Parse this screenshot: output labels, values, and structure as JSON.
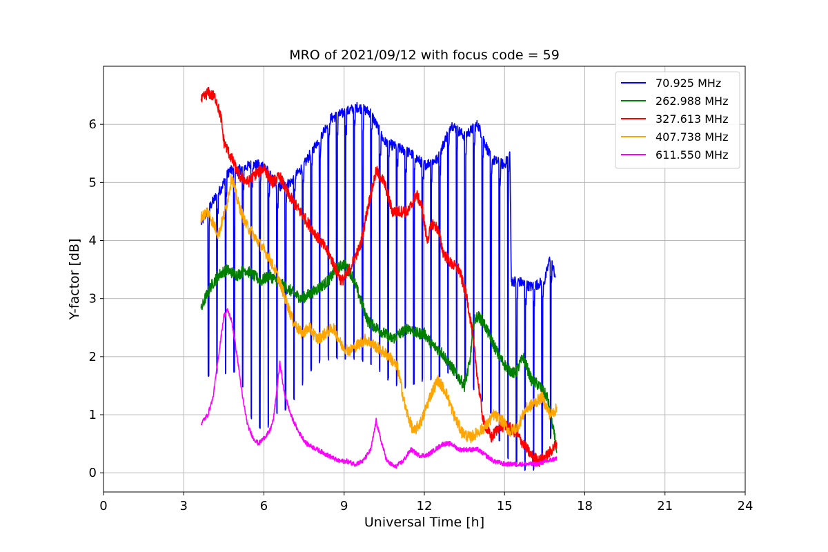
{
  "chart_data": {
    "type": "line",
    "title": "MRO of 2021/09/12 with focus code = 59",
    "xlabel": "Universal Time [h]",
    "ylabel": "Y-factor [dB]",
    "xlim": [
      0,
      24
    ],
    "ylim": [
      -0.33,
      7.0
    ],
    "xticks": [
      0,
      3,
      6,
      9,
      12,
      15,
      18,
      21,
      24
    ],
    "yticks": [
      0,
      1,
      2,
      3,
      4,
      5,
      6
    ],
    "grid": true,
    "legend_position": "top-right",
    "series": [
      {
        "name": "  70.925 MHz",
        "color": "#0000ff",
        "style": "dense-oscillating",
        "upper": [
          [
            3.65,
            4.3
          ],
          [
            4.0,
            4.6
          ],
          [
            4.4,
            4.9
          ],
          [
            4.7,
            5.2
          ],
          [
            5.0,
            5.2
          ],
          [
            5.5,
            5.3
          ],
          [
            6.0,
            5.3
          ],
          [
            6.5,
            4.9
          ],
          [
            7.0,
            5.0
          ],
          [
            7.5,
            5.3
          ],
          [
            8.0,
            5.7
          ],
          [
            8.5,
            6.1
          ],
          [
            9.0,
            6.2
          ],
          [
            9.5,
            6.3
          ],
          [
            10.0,
            6.2
          ],
          [
            10.5,
            5.7
          ],
          [
            11.0,
            5.6
          ],
          [
            11.5,
            5.5
          ],
          [
            12.0,
            5.3
          ],
          [
            12.5,
            5.4
          ],
          [
            13.0,
            6.0
          ],
          [
            13.5,
            5.8
          ],
          [
            14.0,
            6.0
          ],
          [
            14.5,
            5.4
          ],
          [
            15.0,
            5.3
          ],
          [
            15.2,
            5.5
          ],
          [
            15.25,
            3.3
          ],
          [
            15.5,
            3.3
          ],
          [
            16.0,
            3.2
          ],
          [
            16.5,
            3.3
          ],
          [
            16.7,
            3.7
          ],
          [
            16.9,
            3.4
          ]
        ],
        "lower": [
          [
            3.65,
            1.2
          ],
          [
            4.0,
            1.8
          ],
          [
            4.5,
            1.7
          ],
          [
            5.0,
            1.8
          ],
          [
            5.5,
            1.0
          ],
          [
            6.0,
            0.7
          ],
          [
            6.5,
            1.0
          ],
          [
            7.0,
            1.2
          ],
          [
            7.5,
            1.6
          ],
          [
            8.0,
            1.9
          ],
          [
            8.5,
            2.0
          ],
          [
            9.0,
            2.0
          ],
          [
            9.5,
            2.0
          ],
          [
            10.0,
            1.9
          ],
          [
            10.5,
            1.7
          ],
          [
            11.0,
            1.5
          ],
          [
            11.5,
            1.5
          ],
          [
            12.0,
            1.6
          ],
          [
            12.5,
            1.7
          ],
          [
            13.0,
            1.7
          ],
          [
            13.5,
            1.6
          ],
          [
            14.0,
            1.4
          ],
          [
            14.5,
            1.0
          ],
          [
            15.0,
            0.3
          ],
          [
            15.5,
            0.1
          ],
          [
            16.0,
            0.0
          ],
          [
            16.5,
            0.3
          ],
          [
            16.9,
            0.9
          ]
        ],
        "cycle_h": 0.32
      },
      {
        "name": "262.988 MHz",
        "color": "#008000",
        "points": [
          [
            3.65,
            2.8
          ],
          [
            3.8,
            3.0
          ],
          [
            4.0,
            3.2
          ],
          [
            4.3,
            3.4
          ],
          [
            4.6,
            3.5
          ],
          [
            5.0,
            3.4
          ],
          [
            5.3,
            3.5
          ],
          [
            5.6,
            3.4
          ],
          [
            5.9,
            3.3
          ],
          [
            6.2,
            3.4
          ],
          [
            6.5,
            3.3
          ],
          [
            6.8,
            3.2
          ],
          [
            7.1,
            3.1
          ],
          [
            7.4,
            3.0
          ],
          [
            7.8,
            3.1
          ],
          [
            8.1,
            3.2
          ],
          [
            8.4,
            3.3
          ],
          [
            8.7,
            3.5
          ],
          [
            9.0,
            3.6
          ],
          [
            9.3,
            3.4
          ],
          [
            9.6,
            3.0
          ],
          [
            9.9,
            2.6
          ],
          [
            10.2,
            2.5
          ],
          [
            10.5,
            2.4
          ],
          [
            10.8,
            2.3
          ],
          [
            11.1,
            2.4
          ],
          [
            11.4,
            2.5
          ],
          [
            11.7,
            2.4
          ],
          [
            12.0,
            2.4
          ],
          [
            12.3,
            2.2
          ],
          [
            12.6,
            2.1
          ],
          [
            12.9,
            1.9
          ],
          [
            13.2,
            1.7
          ],
          [
            13.5,
            1.5
          ],
          [
            13.7,
            1.9
          ],
          [
            13.85,
            2.6
          ],
          [
            14.0,
            2.7
          ],
          [
            14.2,
            2.6
          ],
          [
            14.5,
            2.3
          ],
          [
            14.8,
            2.0
          ],
          [
            15.1,
            1.8
          ],
          [
            15.4,
            1.7
          ],
          [
            15.7,
            2.0
          ],
          [
            16.0,
            1.6
          ],
          [
            16.3,
            1.5
          ],
          [
            16.6,
            1.3
          ],
          [
            16.8,
            0.8
          ],
          [
            16.95,
            0.4
          ]
        ]
      },
      {
        "name": "327.613 MHz",
        "color": "#ff0000",
        "points": [
          [
            3.65,
            6.4
          ],
          [
            3.9,
            6.55
          ],
          [
            4.2,
            6.45
          ],
          [
            4.4,
            6.1
          ],
          [
            4.5,
            5.7
          ],
          [
            4.8,
            5.4
          ],
          [
            5.1,
            5.1
          ],
          [
            5.4,
            5.0
          ],
          [
            5.7,
            5.15
          ],
          [
            6.0,
            5.25
          ],
          [
            6.3,
            5.0
          ],
          [
            6.6,
            5.1
          ],
          [
            6.9,
            4.8
          ],
          [
            7.2,
            4.6
          ],
          [
            7.5,
            4.4
          ],
          [
            7.8,
            4.2
          ],
          [
            8.1,
            4.0
          ],
          [
            8.4,
            3.8
          ],
          [
            8.7,
            3.5
          ],
          [
            8.9,
            3.3
          ],
          [
            9.1,
            3.4
          ],
          [
            9.3,
            3.6
          ],
          [
            9.6,
            3.9
          ],
          [
            9.9,
            4.6
          ],
          [
            10.2,
            5.2
          ],
          [
            10.5,
            5.0
          ],
          [
            10.8,
            4.5
          ],
          [
            11.1,
            4.5
          ],
          [
            11.4,
            4.5
          ],
          [
            11.7,
            4.8
          ],
          [
            11.9,
            4.6
          ],
          [
            12.1,
            4.0
          ],
          [
            12.3,
            4.3
          ],
          [
            12.5,
            4.2
          ],
          [
            12.7,
            3.8
          ],
          [
            13.0,
            3.6
          ],
          [
            13.3,
            3.5
          ],
          [
            13.6,
            3.0
          ],
          [
            13.8,
            2.4
          ],
          [
            14.0,
            1.6
          ],
          [
            14.2,
            0.9
          ],
          [
            14.5,
            0.6
          ],
          [
            14.8,
            0.8
          ],
          [
            15.1,
            0.8
          ],
          [
            15.4,
            0.7
          ],
          [
            15.7,
            0.5
          ],
          [
            16.0,
            0.3
          ],
          [
            16.3,
            0.2
          ],
          [
            16.6,
            0.3
          ],
          [
            16.95,
            0.5
          ]
        ]
      },
      {
        "name": "407.738 MHz",
        "color": "#ffa500",
        "points": [
          [
            3.65,
            4.4
          ],
          [
            3.9,
            4.5
          ],
          [
            4.1,
            4.3
          ],
          [
            4.3,
            4.1
          ],
          [
            4.6,
            4.6
          ],
          [
            4.8,
            5.1
          ],
          [
            5.0,
            4.7
          ],
          [
            5.3,
            4.3
          ],
          [
            5.6,
            4.1
          ],
          [
            5.9,
            3.9
          ],
          [
            6.2,
            3.7
          ],
          [
            6.5,
            3.4
          ],
          [
            6.8,
            3.0
          ],
          [
            7.1,
            2.6
          ],
          [
            7.4,
            2.4
          ],
          [
            7.7,
            2.5
          ],
          [
            8.0,
            2.3
          ],
          [
            8.3,
            2.4
          ],
          [
            8.6,
            2.5
          ],
          [
            8.9,
            2.2
          ],
          [
            9.2,
            2.1
          ],
          [
            9.5,
            2.2
          ],
          [
            9.8,
            2.3
          ],
          [
            10.1,
            2.2
          ],
          [
            10.4,
            2.1
          ],
          [
            10.7,
            2.0
          ],
          [
            11.0,
            1.8
          ],
          [
            11.3,
            1.1
          ],
          [
            11.6,
            0.7
          ],
          [
            11.9,
            0.9
          ],
          [
            12.2,
            1.3
          ],
          [
            12.5,
            1.6
          ],
          [
            12.8,
            1.4
          ],
          [
            13.1,
            1.0
          ],
          [
            13.4,
            0.7
          ],
          [
            13.7,
            0.6
          ],
          [
            14.0,
            0.7
          ],
          [
            14.3,
            0.8
          ],
          [
            14.6,
            1.0
          ],
          [
            14.9,
            0.9
          ],
          [
            15.2,
            0.7
          ],
          [
            15.5,
            0.8
          ],
          [
            15.8,
            1.1
          ],
          [
            16.1,
            1.2
          ],
          [
            16.4,
            1.3
          ],
          [
            16.7,
            1.0
          ],
          [
            16.95,
            1.1
          ]
        ]
      },
      {
        "name": "611.550 MHz",
        "color": "#ff00ff",
        "points": [
          [
            3.65,
            0.85
          ],
          [
            3.9,
            1.0
          ],
          [
            4.1,
            1.3
          ],
          [
            4.3,
            2.0
          ],
          [
            4.5,
            2.7
          ],
          [
            4.65,
            2.8
          ],
          [
            4.8,
            2.6
          ],
          [
            5.0,
            2.0
          ],
          [
            5.2,
            1.3
          ],
          [
            5.4,
            0.8
          ],
          [
            5.6,
            0.6
          ],
          [
            5.8,
            0.5
          ],
          [
            6.0,
            0.6
          ],
          [
            6.2,
            0.7
          ],
          [
            6.35,
            0.9
          ],
          [
            6.5,
            1.5
          ],
          [
            6.6,
            1.9
          ],
          [
            6.75,
            1.4
          ],
          [
            7.0,
            1.0
          ],
          [
            7.3,
            0.7
          ],
          [
            7.6,
            0.5
          ],
          [
            8.0,
            0.4
          ],
          [
            8.4,
            0.3
          ],
          [
            8.8,
            0.2
          ],
          [
            9.1,
            0.2
          ],
          [
            9.4,
            0.15
          ],
          [
            9.7,
            0.2
          ],
          [
            10.0,
            0.4
          ],
          [
            10.2,
            0.9
          ],
          [
            10.35,
            0.6
          ],
          [
            10.6,
            0.2
          ],
          [
            10.9,
            0.1
          ],
          [
            11.2,
            0.2
          ],
          [
            11.5,
            0.4
          ],
          [
            11.8,
            0.3
          ],
          [
            12.1,
            0.3
          ],
          [
            12.4,
            0.4
          ],
          [
            12.7,
            0.5
          ],
          [
            13.0,
            0.5
          ],
          [
            13.3,
            0.4
          ],
          [
            13.6,
            0.4
          ],
          [
            14.0,
            0.4
          ],
          [
            14.3,
            0.3
          ],
          [
            14.6,
            0.2
          ],
          [
            15.0,
            0.15
          ],
          [
            15.4,
            0.15
          ],
          [
            15.8,
            0.15
          ],
          [
            16.2,
            0.15
          ],
          [
            16.6,
            0.2
          ],
          [
            16.95,
            0.25
          ]
        ]
      }
    ]
  }
}
